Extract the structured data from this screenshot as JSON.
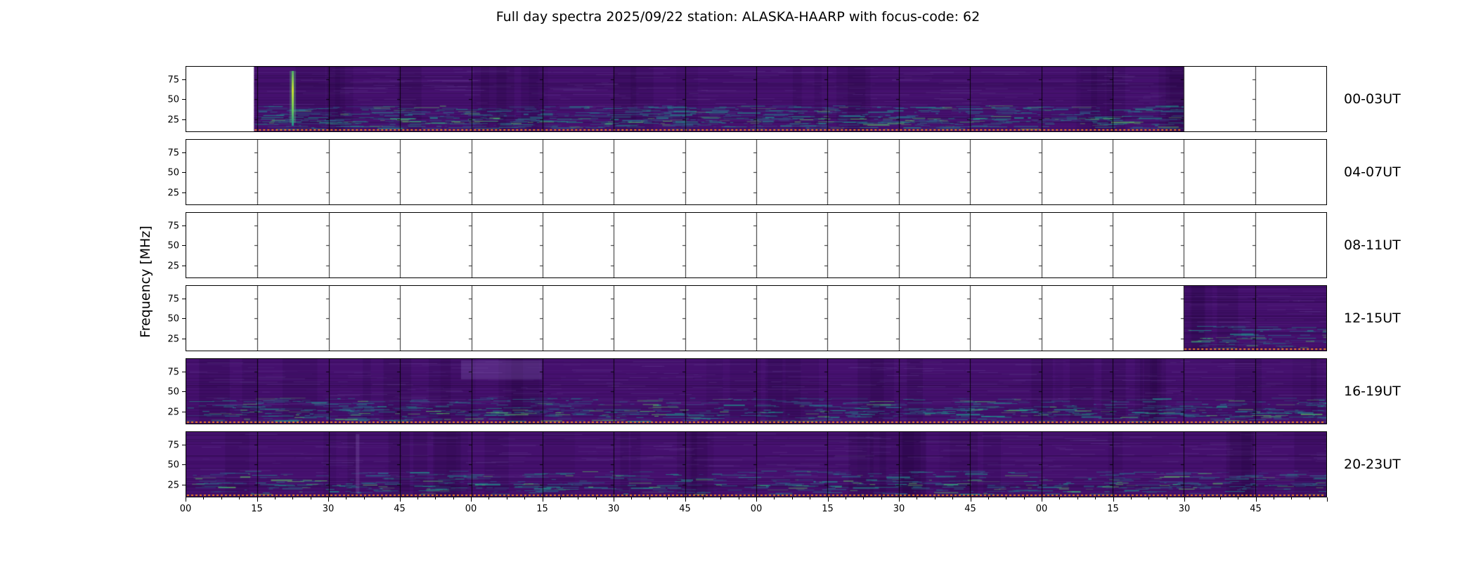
{
  "title": "Full day spectra 2025/09/22 station: ALASKA-HAARP with focus-code: 62",
  "y_axis": {
    "label": "Frequency [MHz]",
    "ticks": [
      "75",
      "50",
      "25"
    ]
  },
  "x_axis": {
    "tick_labels": [
      "00",
      "15",
      "30",
      "45",
      "00",
      "15",
      "30",
      "45",
      "00",
      "15",
      "30",
      "45",
      "00",
      "15",
      "30",
      "45"
    ]
  },
  "rows": [
    {
      "label": "00-03UT",
      "segments": [
        {
          "start": 0.95,
          "end": 14
        }
      ],
      "events": [
        {
          "type": "bright-burst",
          "tick": 1.49
        }
      ],
      "teal_level": 1.0
    },
    {
      "label": "04-07UT",
      "segments": [],
      "events": [],
      "teal_level": 0
    },
    {
      "label": "08-11UT",
      "segments": [],
      "events": [],
      "teal_level": 0
    },
    {
      "label": "12-15UT",
      "segments": [
        {
          "start": 14,
          "end": 16
        }
      ],
      "events": [],
      "teal_level": 0.6
    },
    {
      "label": "16-19UT",
      "segments": [
        {
          "start": 0,
          "end": 16
        }
      ],
      "events": [
        {
          "type": "light-patch",
          "tick": 4.3
        }
      ],
      "teal_level": 0.75
    },
    {
      "label": "20-23UT",
      "segments": [
        {
          "start": 0,
          "end": 16
        }
      ],
      "events": [
        {
          "type": "faint-column",
          "tick": 2.4
        }
      ],
      "teal_level": 0.55
    }
  ],
  "colors": {
    "base": "#45106e",
    "teal": "#21918c",
    "teal_dim": "#2a6f8e",
    "bright": "#5ec962",
    "burst": "#c8e430",
    "orange": "#ee7b1c",
    "frame": "#000000",
    "background": "#ffffff"
  },
  "chart_data": {
    "type": "heatmap",
    "subtype": "radio spectrogram daily overview, 6 stacked 4-hour panels of 16 fifteen-minute subpanels",
    "title": "Full day spectra 2025/09/22 station: ALASKA-HAARP with focus-code: 62",
    "station": "ALASKA-HAARP",
    "date": "2025/09/22",
    "focus_code": "62",
    "xlabel": "",
    "ylabel": "Frequency [MHz]",
    "y_ticks_mhz": [
      25,
      50,
      75
    ],
    "ylim_mhz_approx": [
      10,
      90
    ],
    "x_tick_interval_minutes": 15,
    "x_tick_labels": [
      "00",
      "15",
      "30",
      "45",
      "00",
      "15",
      "30",
      "45",
      "00",
      "15",
      "30",
      "45",
      "00",
      "15",
      "30",
      "45"
    ],
    "colormap": "viridis",
    "legend": "none",
    "grid": "vertical subpanel boundaries every 15 minutes",
    "rows": [
      {
        "time_range": "00-03UT",
        "coverage_minutes": [
          [
            14,
            210
          ]
        ],
        "features": [
          "bright narrow vertical burst near 00:22 UT spanning ~15-85 MHz",
          "teal emission bands below ~30 MHz",
          "orange dotted marker line along bottom of data"
        ]
      },
      {
        "time_range": "04-07UT",
        "coverage_minutes": [],
        "features": [
          "no data"
        ]
      },
      {
        "time_range": "08-11UT",
        "coverage_minutes": [],
        "features": [
          "no data"
        ]
      },
      {
        "time_range": "12-15UT",
        "coverage_minutes": [
          [
            210,
            240
          ]
        ],
        "features": [
          "data only in last ~30 minutes of window",
          "thin teal bands near 20-25 MHz",
          "orange dotted marker line along bottom of data"
        ]
      },
      {
        "time_range": "16-19UT",
        "coverage_minutes": [
          [
            0,
            240
          ]
        ],
        "features": [
          "full coverage",
          "diffuse teal bands below ~30 MHz",
          "slightly lighter patch near 17:05 UT at high frequencies",
          "orange dotted marker line along bottom"
        ]
      },
      {
        "time_range": "20-23UT",
        "coverage_minutes": [
          [
            0,
            240
          ]
        ],
        "features": [
          "full coverage",
          "faint vertical streak near 20:36 UT",
          "thin teal bands near 25 MHz",
          "orange dotted marker line along bottom"
        ]
      }
    ]
  }
}
